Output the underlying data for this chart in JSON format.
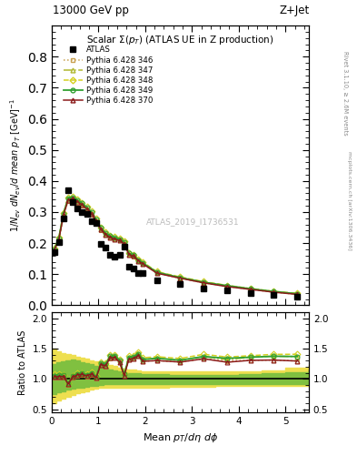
{
  "title_top": "13000 GeV pp",
  "title_right": "Z+Jet",
  "plot_title": "Scalar $\\Sigma(p_T)$ (ATLAS UE in Z production)",
  "watermark": "ATLAS_2019_I1736531",
  "right_label_top": "Rivet 3.1.10, ≥ 2.6M events",
  "right_label_bot": "mcplots.cern.ch [arXiv:1306.3436]",
  "xlabel": "Mean $p_T/d\\eta\\ d\\phi$",
  "ylabel": "$1/N_{ev}\\ dN_{ev}/d\\ mean\\ p_T\\ [\\mathrm{GeV}]^{-1}$",
  "ylabel_ratio": "Ratio to ATLAS",
  "xlim": [
    0,
    5.5
  ],
  "ylim_main": [
    0.0,
    0.9
  ],
  "ylim_ratio": [
    0.45,
    2.1
  ],
  "yticks_main": [
    0.0,
    0.1,
    0.2,
    0.3,
    0.4,
    0.5,
    0.6,
    0.7,
    0.8
  ],
  "yticks_ratio": [
    0.5,
    1.0,
    1.5,
    2.0
  ],
  "atlas_x": [
    0.05,
    0.15,
    0.25,
    0.35,
    0.45,
    0.55,
    0.65,
    0.75,
    0.85,
    0.95,
    1.05,
    1.15,
    1.25,
    1.35,
    1.45,
    1.55,
    1.65,
    1.75,
    1.85,
    1.95,
    2.25,
    2.75,
    3.25,
    3.75,
    4.25,
    4.75,
    5.25
  ],
  "atlas_y": [
    0.17,
    0.202,
    0.278,
    0.37,
    0.332,
    0.312,
    0.3,
    0.295,
    0.272,
    0.265,
    0.197,
    0.187,
    0.162,
    0.157,
    0.163,
    0.188,
    0.123,
    0.118,
    0.103,
    0.103,
    0.079,
    0.068,
    0.054,
    0.047,
    0.039,
    0.032,
    0.027
  ],
  "py346_x": [
    0.05,
    0.15,
    0.25,
    0.35,
    0.45,
    0.55,
    0.65,
    0.75,
    0.85,
    0.95,
    1.05,
    1.15,
    1.25,
    1.35,
    1.45,
    1.55,
    1.65,
    1.75,
    1.85,
    1.95,
    2.25,
    2.75,
    3.25,
    3.75,
    4.25,
    4.75,
    5.25
  ],
  "py346_y": [
    0.173,
    0.207,
    0.287,
    0.336,
    0.34,
    0.33,
    0.32,
    0.307,
    0.292,
    0.268,
    0.242,
    0.226,
    0.217,
    0.213,
    0.208,
    0.197,
    0.163,
    0.157,
    0.143,
    0.133,
    0.103,
    0.087,
    0.072,
    0.061,
    0.051,
    0.042,
    0.035
  ],
  "py347_x": [
    0.05,
    0.15,
    0.25,
    0.35,
    0.45,
    0.55,
    0.65,
    0.75,
    0.85,
    0.95,
    1.05,
    1.15,
    1.25,
    1.35,
    1.45,
    1.55,
    1.65,
    1.75,
    1.85,
    1.95,
    2.25,
    2.75,
    3.25,
    3.75,
    4.25,
    4.75,
    5.25
  ],
  "py347_y": [
    0.178,
    0.212,
    0.292,
    0.341,
    0.345,
    0.335,
    0.325,
    0.312,
    0.297,
    0.273,
    0.247,
    0.231,
    0.221,
    0.216,
    0.212,
    0.202,
    0.166,
    0.161,
    0.146,
    0.136,
    0.106,
    0.089,
    0.074,
    0.062,
    0.053,
    0.044,
    0.037
  ],
  "py348_x": [
    0.05,
    0.15,
    0.25,
    0.35,
    0.45,
    0.55,
    0.65,
    0.75,
    0.85,
    0.95,
    1.05,
    1.15,
    1.25,
    1.35,
    1.45,
    1.55,
    1.65,
    1.75,
    1.85,
    1.95,
    2.25,
    2.75,
    3.25,
    3.75,
    4.25,
    4.75,
    5.25
  ],
  "py348_y": [
    0.183,
    0.217,
    0.297,
    0.346,
    0.35,
    0.34,
    0.33,
    0.317,
    0.302,
    0.278,
    0.251,
    0.235,
    0.225,
    0.22,
    0.215,
    0.205,
    0.169,
    0.163,
    0.149,
    0.139,
    0.108,
    0.091,
    0.076,
    0.064,
    0.054,
    0.045,
    0.038
  ],
  "py349_x": [
    0.05,
    0.15,
    0.25,
    0.35,
    0.45,
    0.55,
    0.65,
    0.75,
    0.85,
    0.95,
    1.05,
    1.15,
    1.25,
    1.35,
    1.45,
    1.55,
    1.65,
    1.75,
    1.85,
    1.95,
    2.25,
    2.75,
    3.25,
    3.75,
    4.25,
    4.75,
    5.25
  ],
  "py349_y": [
    0.18,
    0.215,
    0.295,
    0.344,
    0.348,
    0.338,
    0.328,
    0.315,
    0.3,
    0.275,
    0.249,
    0.232,
    0.223,
    0.218,
    0.213,
    0.202,
    0.167,
    0.161,
    0.146,
    0.136,
    0.106,
    0.089,
    0.074,
    0.063,
    0.053,
    0.044,
    0.037
  ],
  "py370_x": [
    0.05,
    0.15,
    0.25,
    0.35,
    0.45,
    0.55,
    0.65,
    0.75,
    0.85,
    0.95,
    1.05,
    1.15,
    1.25,
    1.35,
    1.45,
    1.55,
    1.65,
    1.75,
    1.85,
    1.95,
    2.25,
    2.75,
    3.25,
    3.75,
    4.25,
    4.75,
    5.25
  ],
  "py370_y": [
    0.176,
    0.21,
    0.29,
    0.339,
    0.343,
    0.333,
    0.323,
    0.31,
    0.295,
    0.271,
    0.244,
    0.228,
    0.218,
    0.213,
    0.208,
    0.198,
    0.163,
    0.158,
    0.143,
    0.133,
    0.103,
    0.087,
    0.072,
    0.06,
    0.051,
    0.042,
    0.035
  ],
  "color_346": "#c8a050",
  "color_347": "#b0b830",
  "color_348": "#d4d020",
  "color_349": "#30a030",
  "color_370": "#8b1a1a",
  "color_atlas": "#000000",
  "band_yellow": "#eedf50",
  "band_green": "#80c040",
  "band_x_edges": [
    0.0,
    0.1,
    0.2,
    0.3,
    0.4,
    0.5,
    0.6,
    0.7,
    0.8,
    0.9,
    1.0,
    1.1,
    1.2,
    1.3,
    1.4,
    1.5,
    1.6,
    1.7,
    1.8,
    1.9,
    2.0,
    2.5,
    3.0,
    3.5,
    4.0,
    4.5,
    5.0,
    5.5
  ],
  "by_lo": [
    0.6,
    0.65,
    0.68,
    0.71,
    0.73,
    0.76,
    0.78,
    0.8,
    0.82,
    0.84,
    0.85,
    0.86,
    0.86,
    0.86,
    0.86,
    0.86,
    0.86,
    0.86,
    0.86,
    0.86,
    0.86,
    0.87,
    0.87,
    0.88,
    0.88,
    0.88,
    0.88,
    0.88
  ],
  "by_hi": [
    1.5,
    1.45,
    1.43,
    1.41,
    1.39,
    1.37,
    1.35,
    1.33,
    1.31,
    1.29,
    1.27,
    1.25,
    1.23,
    1.21,
    1.19,
    1.17,
    1.16,
    1.15,
    1.14,
    1.13,
    1.13,
    1.12,
    1.12,
    1.12,
    1.13,
    1.14,
    1.18,
    1.23
  ],
  "bg_lo": [
    0.75,
    0.78,
    0.8,
    0.82,
    0.84,
    0.85,
    0.86,
    0.87,
    0.88,
    0.89,
    0.9,
    0.91,
    0.91,
    0.91,
    0.91,
    0.91,
    0.91,
    0.91,
    0.91,
    0.91,
    0.91,
    0.91,
    0.91,
    0.92,
    0.92,
    0.92,
    0.92,
    0.92
  ],
  "bg_hi": [
    1.25,
    1.27,
    1.29,
    1.31,
    1.32,
    1.3,
    1.28,
    1.26,
    1.24,
    1.22,
    1.2,
    1.18,
    1.16,
    1.14,
    1.12,
    1.11,
    1.1,
    1.09,
    1.09,
    1.08,
    1.08,
    1.07,
    1.07,
    1.07,
    1.08,
    1.09,
    1.11,
    1.15
  ]
}
